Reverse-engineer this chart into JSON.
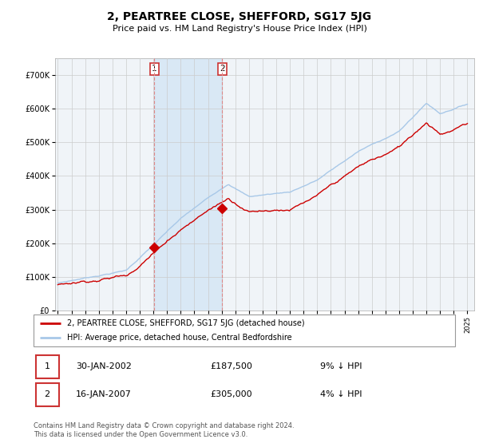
{
  "title": "2, PEARTREE CLOSE, SHEFFORD, SG17 5JG",
  "subtitle": "Price paid vs. HM Land Registry's House Price Index (HPI)",
  "legend_line1": "2, PEARTREE CLOSE, SHEFFORD, SG17 5JG (detached house)",
  "legend_line2": "HPI: Average price, detached house, Central Bedfordshire",
  "transaction1_date": "30-JAN-2002",
  "transaction1_price": "£187,500",
  "transaction1_hpi": "9% ↓ HPI",
  "transaction2_date": "16-JAN-2007",
  "transaction2_price": "£305,000",
  "transaction2_hpi": "4% ↓ HPI",
  "footer": "Contains HM Land Registry data © Crown copyright and database right 2024.\nThis data is licensed under the Open Government Licence v3.0.",
  "ylim": [
    0,
    750000
  ],
  "yticks": [
    0,
    100000,
    200000,
    300000,
    400000,
    500000,
    600000,
    700000
  ],
  "ytick_labels": [
    "£0",
    "£100K",
    "£200K",
    "£300K",
    "£400K",
    "£500K",
    "£600K",
    "£700K"
  ],
  "hpi_color": "#a8c8e8",
  "price_color": "#cc0000",
  "grid_color": "#cccccc",
  "plot_bg_color": "#f0f4f8",
  "span_color": "#d0e4f4",
  "vline_color": "#dd8888",
  "marker1_year": 2002.08,
  "marker1_value": 187500,
  "marker2_year": 2007.05,
  "marker2_value": 305000,
  "vline1_x": 2002.08,
  "vline2_x": 2007.05,
  "xlim_left": 1994.8,
  "xlim_right": 2025.5
}
